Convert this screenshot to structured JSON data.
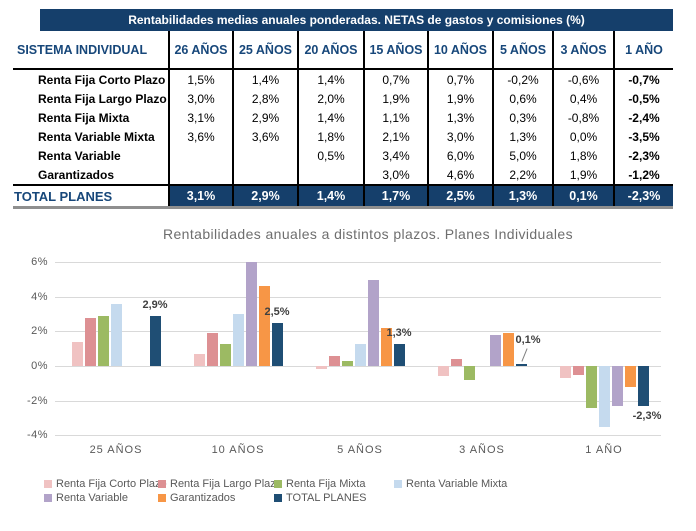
{
  "table": {
    "title": "Rentabilidades medias anuales ponderadas. NETAS de gastos y comisiones (%)",
    "header": [
      "SISTEMA INDIVIDUAL",
      "26 AÑOS",
      "25 AÑOS",
      "20 AÑOS",
      "15 AÑOS",
      "10 AÑOS",
      "5 AÑOS",
      "3 AÑOS",
      "1 AÑO"
    ],
    "rows": [
      {
        "label": "Renta Fija Corto Plazo",
        "values": [
          "1,5%",
          "1,4%",
          "1,4%",
          "0,7%",
          "0,7%",
          "-0,2%",
          "-0,6%",
          "-0,7%"
        ]
      },
      {
        "label": "Renta Fija Largo Plazo",
        "values": [
          "3,0%",
          "2,8%",
          "2,0%",
          "1,9%",
          "1,9%",
          "0,6%",
          "0,4%",
          "-0,5%"
        ]
      },
      {
        "label": "Renta Fija Mixta",
        "values": [
          "3,1%",
          "2,9%",
          "1,4%",
          "1,1%",
          "1,3%",
          "0,3%",
          "-0,8%",
          "-2,4%"
        ]
      },
      {
        "label": "Renta Variable Mixta",
        "values": [
          "3,6%",
          "3,6%",
          "1,8%",
          "2,1%",
          "3,0%",
          "1,3%",
          "0,0%",
          "-3,5%"
        ]
      },
      {
        "label": "Renta Variable",
        "values": [
          "",
          "",
          "0,5%",
          "3,4%",
          "6,0%",
          "5,0%",
          "1,8%",
          "-2,3%"
        ]
      },
      {
        "label": "Garantizados",
        "values": [
          "",
          "",
          "",
          "3,0%",
          "4,6%",
          "2,2%",
          "1,9%",
          "-1,2%"
        ]
      }
    ],
    "total": {
      "label": "TOTAL PLANES",
      "values": [
        "3,1%",
        "2,9%",
        "1,4%",
        "1,7%",
        "2,5%",
        "1,3%",
        "0,1%",
        "-2,3%"
      ]
    }
  },
  "chart_data": {
    "type": "bar",
    "title": "Rentabilidades anuales a distintos plazos. Planes Individuales",
    "categories": [
      "25 AÑOS",
      "10 AÑOS",
      "5 AÑOS",
      "3 AÑOS",
      "1 AÑO"
    ],
    "series": [
      {
        "name": "Renta Fija Corto Plazo",
        "color": "#f0c2c2",
        "values": [
          1.4,
          0.7,
          -0.2,
          -0.6,
          -0.7
        ]
      },
      {
        "name": "Renta Fija Largo Plazo",
        "color": "#dd9093",
        "values": [
          2.8,
          1.9,
          0.6,
          0.4,
          -0.5
        ]
      },
      {
        "name": "Renta Fija Mixta",
        "color": "#9cba63",
        "values": [
          2.9,
          1.3,
          0.3,
          -0.8,
          -2.4
        ]
      },
      {
        "name": "Renta Variable Mixta",
        "color": "#c5daee",
        "values": [
          3.6,
          3.0,
          1.3,
          0.0,
          -3.5
        ]
      },
      {
        "name": "Renta Variable",
        "color": "#b2a3c9",
        "values": [
          null,
          6.0,
          5.0,
          1.8,
          -2.3
        ]
      },
      {
        "name": "Garantizados",
        "color": "#f79646",
        "values": [
          null,
          4.6,
          2.2,
          1.9,
          -1.2
        ]
      },
      {
        "name": "TOTAL PLANES",
        "color": "#1f4e74",
        "values": [
          2.9,
          2.5,
          1.3,
          0.1,
          -2.3
        ]
      }
    ],
    "data_labels": [
      {
        "category": "25 AÑOS",
        "series": "TOTAL PLANES",
        "text": "2,9%"
      },
      {
        "category": "10 AÑOS",
        "series": "TOTAL PLANES",
        "text": "2,5%"
      },
      {
        "category": "5 AÑOS",
        "series": "TOTAL PLANES",
        "text": "1,3%"
      },
      {
        "category": "3 AÑOS",
        "series": "TOTAL PLANES",
        "text": "0,1%",
        "leader": true
      },
      {
        "category": "1 AÑO",
        "series": "TOTAL PLANES",
        "text": "-2,3%"
      }
    ],
    "y_ticks": [
      {
        "label": "6%",
        "value": 6
      },
      {
        "label": "4%",
        "value": 4
      },
      {
        "label": "2%",
        "value": 2
      },
      {
        "label": "0%",
        "value": 0
      },
      {
        "label": "-2%",
        "value": -2
      },
      {
        "label": "-4%",
        "value": -4
      }
    ],
    "ylim": [
      -4,
      6
    ],
    "grid": true,
    "legend_position": "bottom"
  },
  "colors": {
    "table_navy": "#153f6b",
    "header_text": "#17477a",
    "grid": "#d9d9d9",
    "axis_text": "#595959",
    "chart_title_text": "#6e6e6e",
    "data_label_text": "#404040",
    "total_underline": "#8f8f8f"
  }
}
